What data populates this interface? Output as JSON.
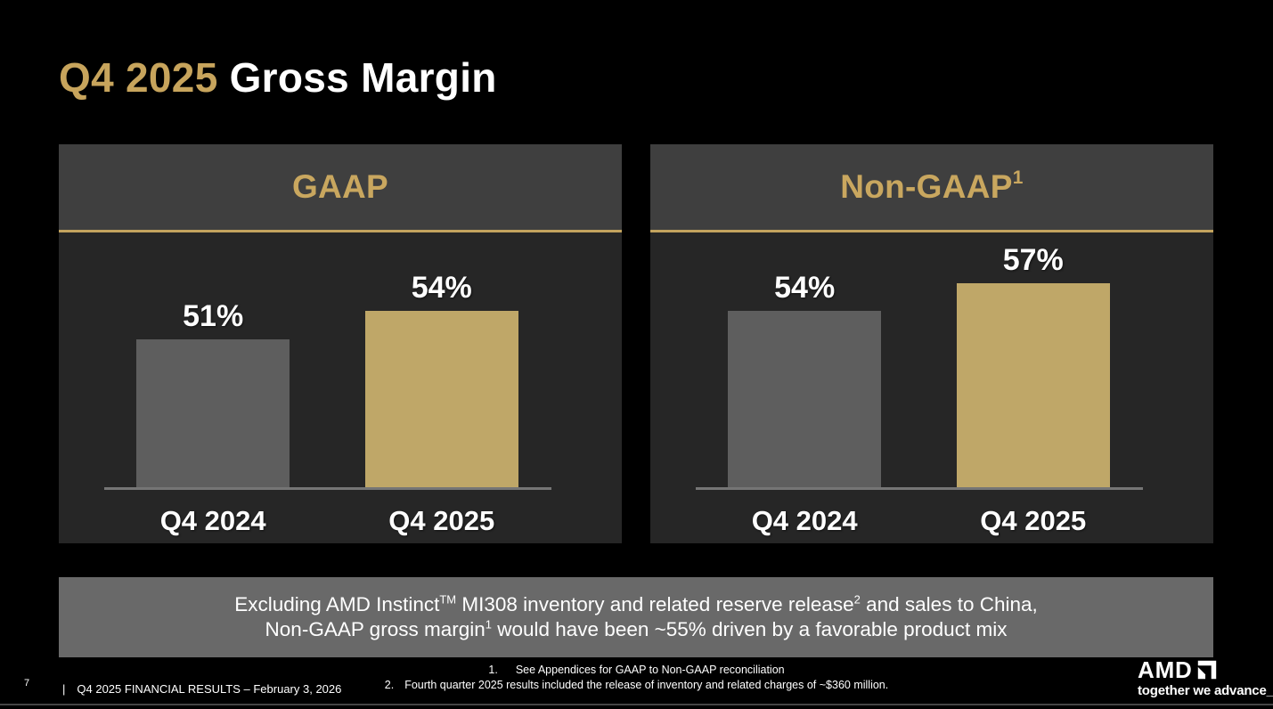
{
  "slide": {
    "title": {
      "highlight": "Q4 2025",
      "rest": "Gross Margin"
    }
  },
  "chart_data": [
    {
      "type": "bar",
      "title": "GAAP",
      "title_superscript": "",
      "categories": [
        "Q4 2024",
        "Q4 2025"
      ],
      "values": [
        51,
        54
      ],
      "value_labels": [
        "51%",
        "54%"
      ],
      "xlabel": "",
      "ylabel": "",
      "ylim": [
        35,
        60
      ],
      "grid": false,
      "legend": false,
      "bar_colors": [
        "#5E5E5E",
        "#BFA768"
      ]
    },
    {
      "type": "bar",
      "title": "Non-GAAP",
      "title_superscript": "1",
      "categories": [
        "Q4 2024",
        "Q4 2025"
      ],
      "values": [
        54,
        57
      ],
      "value_labels": [
        "54%",
        "57%"
      ],
      "xlabel": "",
      "ylabel": "",
      "ylim": [
        35,
        60
      ],
      "grid": false,
      "legend": false,
      "bar_colors": [
        "#5E5E5E",
        "#BFA768"
      ]
    }
  ],
  "note": {
    "line1": [
      {
        "t": "Excluding AMD Instinct"
      },
      {
        "t": "TM",
        "sup": true
      },
      {
        "t": " MI308 inventory and related reserve release"
      },
      {
        "t": "2",
        "sup": true
      },
      {
        "t": " and sales to China,"
      }
    ],
    "line2": [
      {
        "t": "Non-GAAP gross margin"
      },
      {
        "t": "1",
        "sup": true
      },
      {
        "t": " would have been ~55% driven by a favorable product mix"
      }
    ]
  },
  "footnotes": [
    {
      "num": "1.",
      "text": "See Appendices for GAAP to Non-GAAP reconciliation"
    },
    {
      "num": "2.",
      "text": "Fourth quarter 2025 results included the release of inventory and related charges of ~$360 million."
    }
  ],
  "footer": {
    "page_number": "7",
    "separator": "|",
    "text": "Q4 2025 FINANCIAL RESULTS – February 3, 2026"
  },
  "logo": {
    "brand": "AMD",
    "tagline": "together we advance_",
    "mark_icon": "amd-arrow-icon"
  },
  "colors": {
    "background": "#000000",
    "accent_gold": "#C7A45C",
    "bar_gold": "#BFA768",
    "bar_gray": "#5E5E5E",
    "panel_header_bg": "#3F3F3F",
    "panel_body_bg": "#262626",
    "note_bg": "#696969",
    "axis_gray": "#757575",
    "text_white": "#FFFFFF"
  }
}
